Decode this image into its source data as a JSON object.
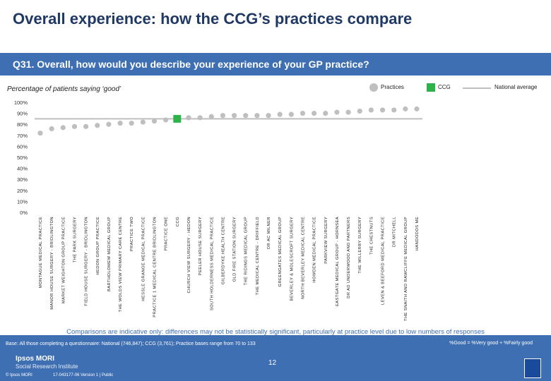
{
  "header": {
    "title": "Overall experience: how the CCG’s practices compare",
    "question": "Q31. Overall, how would you describe your experience of your GP practice?"
  },
  "subtitle": "Percentage of patients saying ‘good’",
  "legend": {
    "practices": "Practices",
    "ccg": "CCG",
    "national": "National average"
  },
  "colors": {
    "practice_marker": "#bfbfbf",
    "ccg_marker": "#2eb24a",
    "national_line": "#bfbfbf",
    "header_bar": "#3f6fb3",
    "title": "#1f3864"
  },
  "chart_data": {
    "type": "scatter",
    "ylim": [
      0,
      100
    ],
    "yticks": [
      "0%",
      "10%",
      "20%",
      "30%",
      "40%",
      "50%",
      "60%",
      "70%",
      "80%",
      "90%",
      "100%"
    ],
    "grid": false,
    "legend_position": "top-right",
    "national_average": 85,
    "categories": [
      "MONTAGUE MEDICAL PRACTICE",
      "MANOR HOUSE SURGERY - BRIDLINGTON",
      "MARKET WEIGHTON GROUP PRACTICE",
      "THE PARK SURGERY",
      "FIELD HOUSE SURGERY - BRIDLINGTON",
      "HEDON GROUP PRACTICE",
      "BARTHOLOMEW MEDICAL GROUP",
      "THE WOLDS VIEW PRIMARY CARE CENTRE",
      "PRACTICE TWO",
      "HESSLE GRANGE MEDICAL PRACTICE",
      "PRACTICE 1 MEDICAL CENTRE BRIDLINGTON",
      "PRACTICE ONE",
      "CCG",
      "CHURCH VIEW SURGERY - HEDON",
      "PEELER HOUSE SURGERY",
      "SOUTH HOLDERNESS MEDICAL PRACTICE",
      "GILBERDYKE HEALTH CENTRE",
      "OLD FIRE STATION SURGERY",
      "THE RIDINGS MEDICAL GROUP",
      "THE MEDICAL CENTRE - DRIFFIELD",
      "DR AC MILNER",
      "GREENGATES MEDICAL GROUP",
      "BEVERLEY & MOLESCROFT SURGERY",
      "NORTH BEVERLEY MEDICAL CENTRE",
      "HOWDEN MEDICAL PRACTICE",
      "PARKVIEW SURGERY",
      "EASTGATE MEDICAL GROUP - HORNSEA",
      "DR AD UNDERWOOD AND PARTNERS",
      "THE WILLERBY SURGERY",
      "THE CHESTNUTS",
      "LEVEN & BEEFORD MEDICAL PRACTICE",
      "DR MITCHELL",
      "THE SNAITH AND RAWCLIFFE MEDICAL GROUP",
      "HANDODOS ME"
    ],
    "ccg_index": 12,
    "values": [
      72,
      76,
      77,
      78,
      78,
      79,
      80,
      81,
      81,
      82,
      83,
      84,
      85,
      86,
      86,
      87,
      88,
      88,
      88,
      88,
      88,
      89,
      89,
      90,
      90,
      90,
      91,
      91,
      92,
      93,
      93,
      93,
      94,
      94
    ]
  },
  "note": "Comparisons are indicative only: differences may not be statistically significant, particularly at practice level due to low numbers of responses",
  "footer": {
    "base": "Base: All those completing a questionnaire: National (746,847); CCG (3,761); Practice bases range from 70 to 133",
    "good_def": "%Good = %Very good + %Fairly good",
    "brand_line1": "Ipsos MORI",
    "brand_line2": "Social Research Institute",
    "copyright": "© Ipsos MORI",
    "job": "17-043177-06 Version 1 | Public",
    "page": "12"
  }
}
